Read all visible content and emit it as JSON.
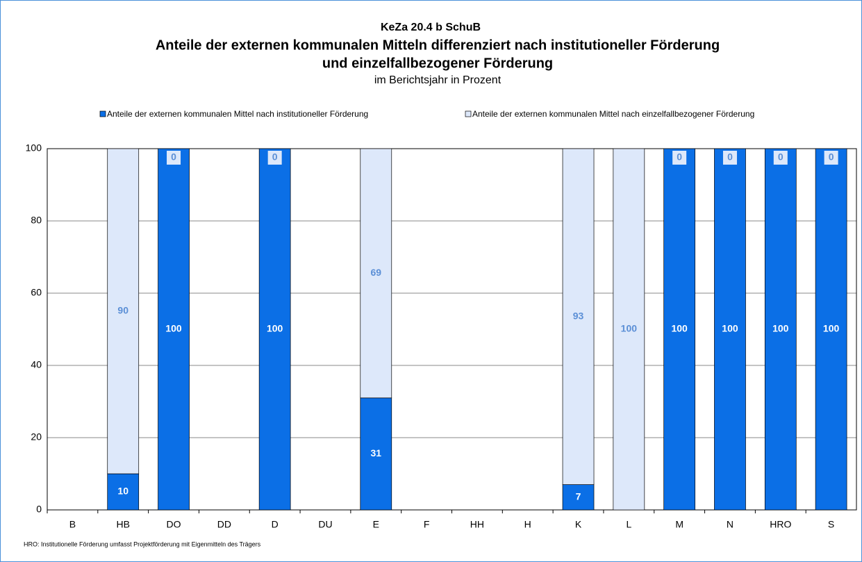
{
  "chart_data": {
    "type": "stacked_bar",
    "supertitle": "KeZa 20.4 b SchuB",
    "title": [
      "Anteile der externen kommunalen Mitteln differenziert nach institutioneller Förderung",
      "und einzelfallbezogener Förderung"
    ],
    "subtitle": "im Berichtsjahr in Prozent",
    "footnote": "HRO: Institutionelle Förderung umfasst Projektförderung mit Eigenmitteln des Trägers",
    "categories": [
      "B",
      "HB",
      "DO",
      "DD",
      "D",
      "DU",
      "E",
      "F",
      "HH",
      "H",
      "K",
      "L",
      "M",
      "N",
      "HRO",
      "S"
    ],
    "series": [
      {
        "name": "Anteile der externen kommunalen Mittel nach institutioneller Förderung",
        "color": "#0b6fe6",
        "label_color": "#ffffff",
        "values": [
          null,
          10,
          100,
          null,
          100,
          null,
          31,
          null,
          null,
          null,
          7,
          0,
          100,
          100,
          100,
          100
        ]
      },
      {
        "name": "Anteile der externen kommunalen Mittel nach einzelfallbezogener Förderung",
        "color": "#dde8fa",
        "label_color": "#5b8fd6",
        "values": [
          null,
          90,
          0,
          null,
          0,
          null,
          69,
          null,
          null,
          null,
          93,
          100,
          0,
          0,
          0,
          0
        ]
      }
    ],
    "ylim": [
      0,
      100
    ],
    "yticks": [
      0,
      20,
      40,
      60,
      80,
      100
    ],
    "grid": true,
    "legend": "top"
  }
}
